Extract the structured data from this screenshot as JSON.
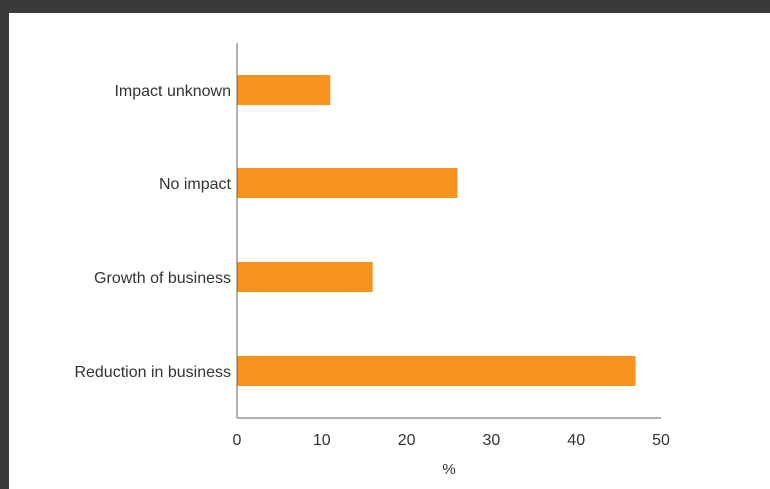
{
  "chart_data": {
    "type": "bar",
    "orientation": "horizontal",
    "categories": [
      "Impact unknown",
      "No impact",
      "Growth of business",
      "Reduction in business"
    ],
    "values": [
      11,
      26,
      16,
      47
    ],
    "xlabel": "%",
    "ylabel": "",
    "xlim": [
      0,
      50
    ],
    "xticks": [
      0,
      10,
      20,
      30,
      40,
      50
    ],
    "bar_color": "#f7941d",
    "axis_color": "#666666",
    "grid": false,
    "legend": "none"
  }
}
